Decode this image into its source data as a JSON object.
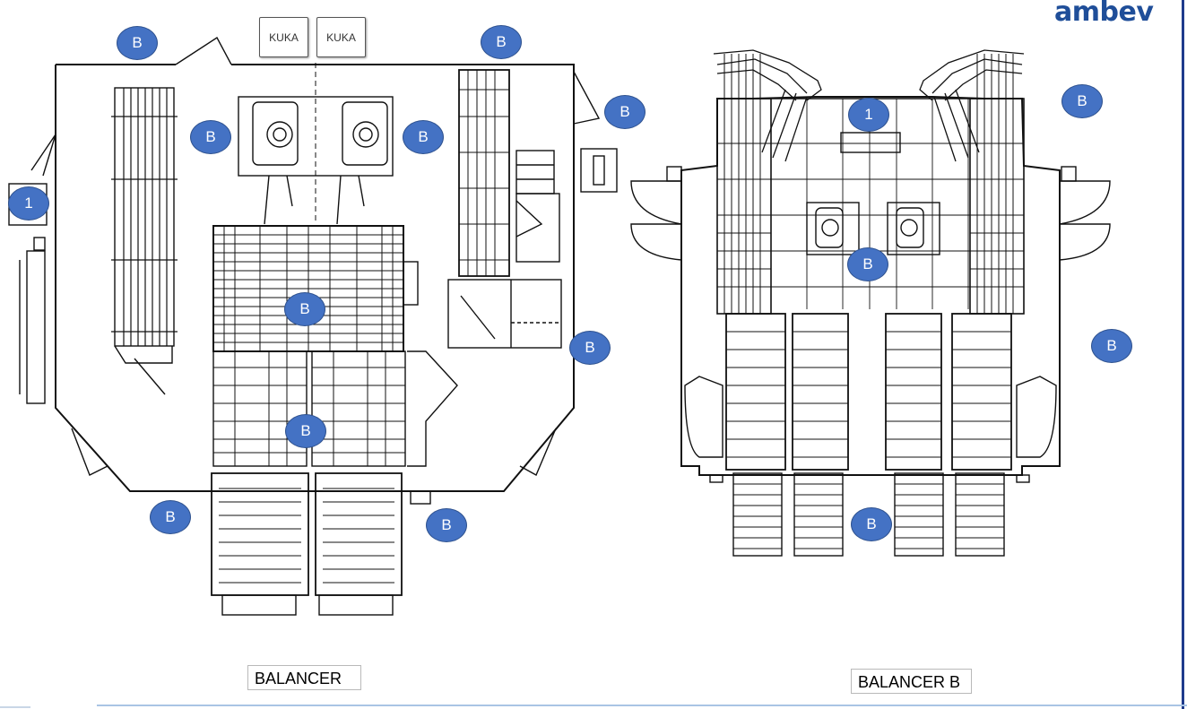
{
  "brand": {
    "logo_text": "ambev",
    "logo_color": "#1f4e99",
    "rule_color": "#1f3b8c"
  },
  "layouts": [
    {
      "caption": "BALANCER"
    },
    {
      "caption": "BALANCER B"
    }
  ],
  "stations": [
    {
      "label": "KUKA"
    },
    {
      "label": "KUKA"
    }
  ],
  "markers": {
    "fill": "#4472c4",
    "items": [
      {
        "label": "B"
      },
      {
        "label": "B"
      },
      {
        "label": "B"
      },
      {
        "label": "B"
      },
      {
        "label": "B"
      },
      {
        "label": "1"
      },
      {
        "label": "B"
      },
      {
        "label": "B"
      },
      {
        "label": "B"
      },
      {
        "label": "B"
      },
      {
        "label": "B"
      },
      {
        "label": "1"
      },
      {
        "label": "B"
      },
      {
        "label": "B"
      },
      {
        "label": "B"
      },
      {
        "label": "B"
      }
    ]
  }
}
